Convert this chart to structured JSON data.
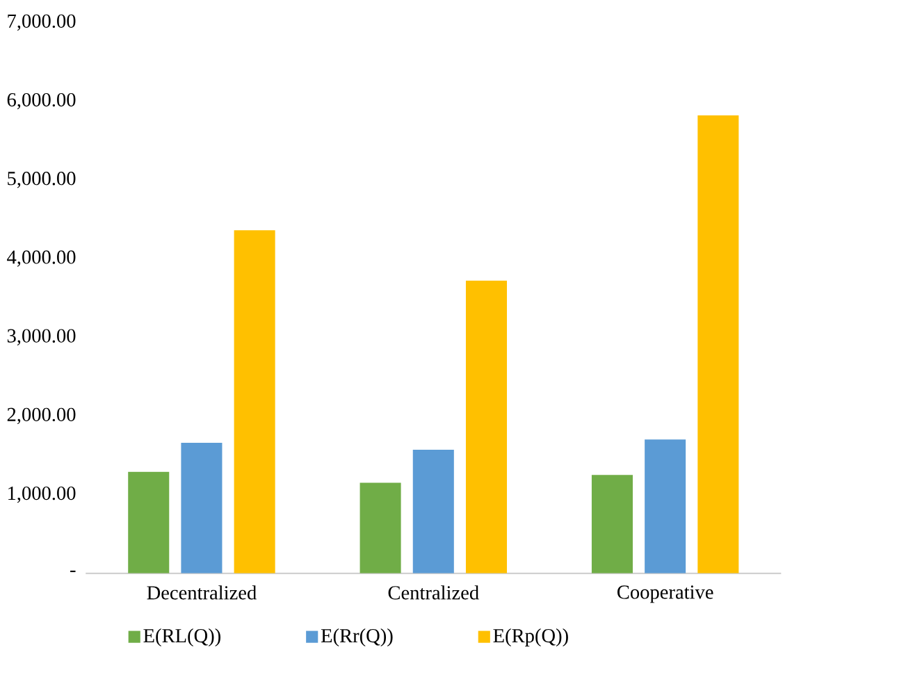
{
  "chart_data": {
    "type": "bar",
    "categories": [
      "Decentralized",
      "Centralized",
      "Cooperative"
    ],
    "series": [
      {
        "name": "E(RL(Q))",
        "color": "#70ad47",
        "values": [
          1290,
          1150,
          1250
        ]
      },
      {
        "name": "E(Rr(Q))",
        "color": "#5b9bd5",
        "values": [
          1660,
          1570,
          1700
        ]
      },
      {
        "name": "E(Rp(Q))",
        "color": "#ffc000",
        "values": [
          4360,
          3720,
          5820
        ]
      }
    ],
    "ylim": [
      0,
      7000
    ],
    "yticks": [
      {
        "value": 0,
        "label": "-"
      },
      {
        "value": 1000,
        "label": "1,000.00"
      },
      {
        "value": 2000,
        "label": "2,000.00"
      },
      {
        "value": 3000,
        "label": "3,000.00"
      },
      {
        "value": 4000,
        "label": "4,000.00"
      },
      {
        "value": 5000,
        "label": "5,000.00"
      },
      {
        "value": 6000,
        "label": "6,000.00"
      },
      {
        "value": 7000,
        "label": "7,000.00"
      }
    ],
    "grid": false,
    "legend": "bottom"
  }
}
